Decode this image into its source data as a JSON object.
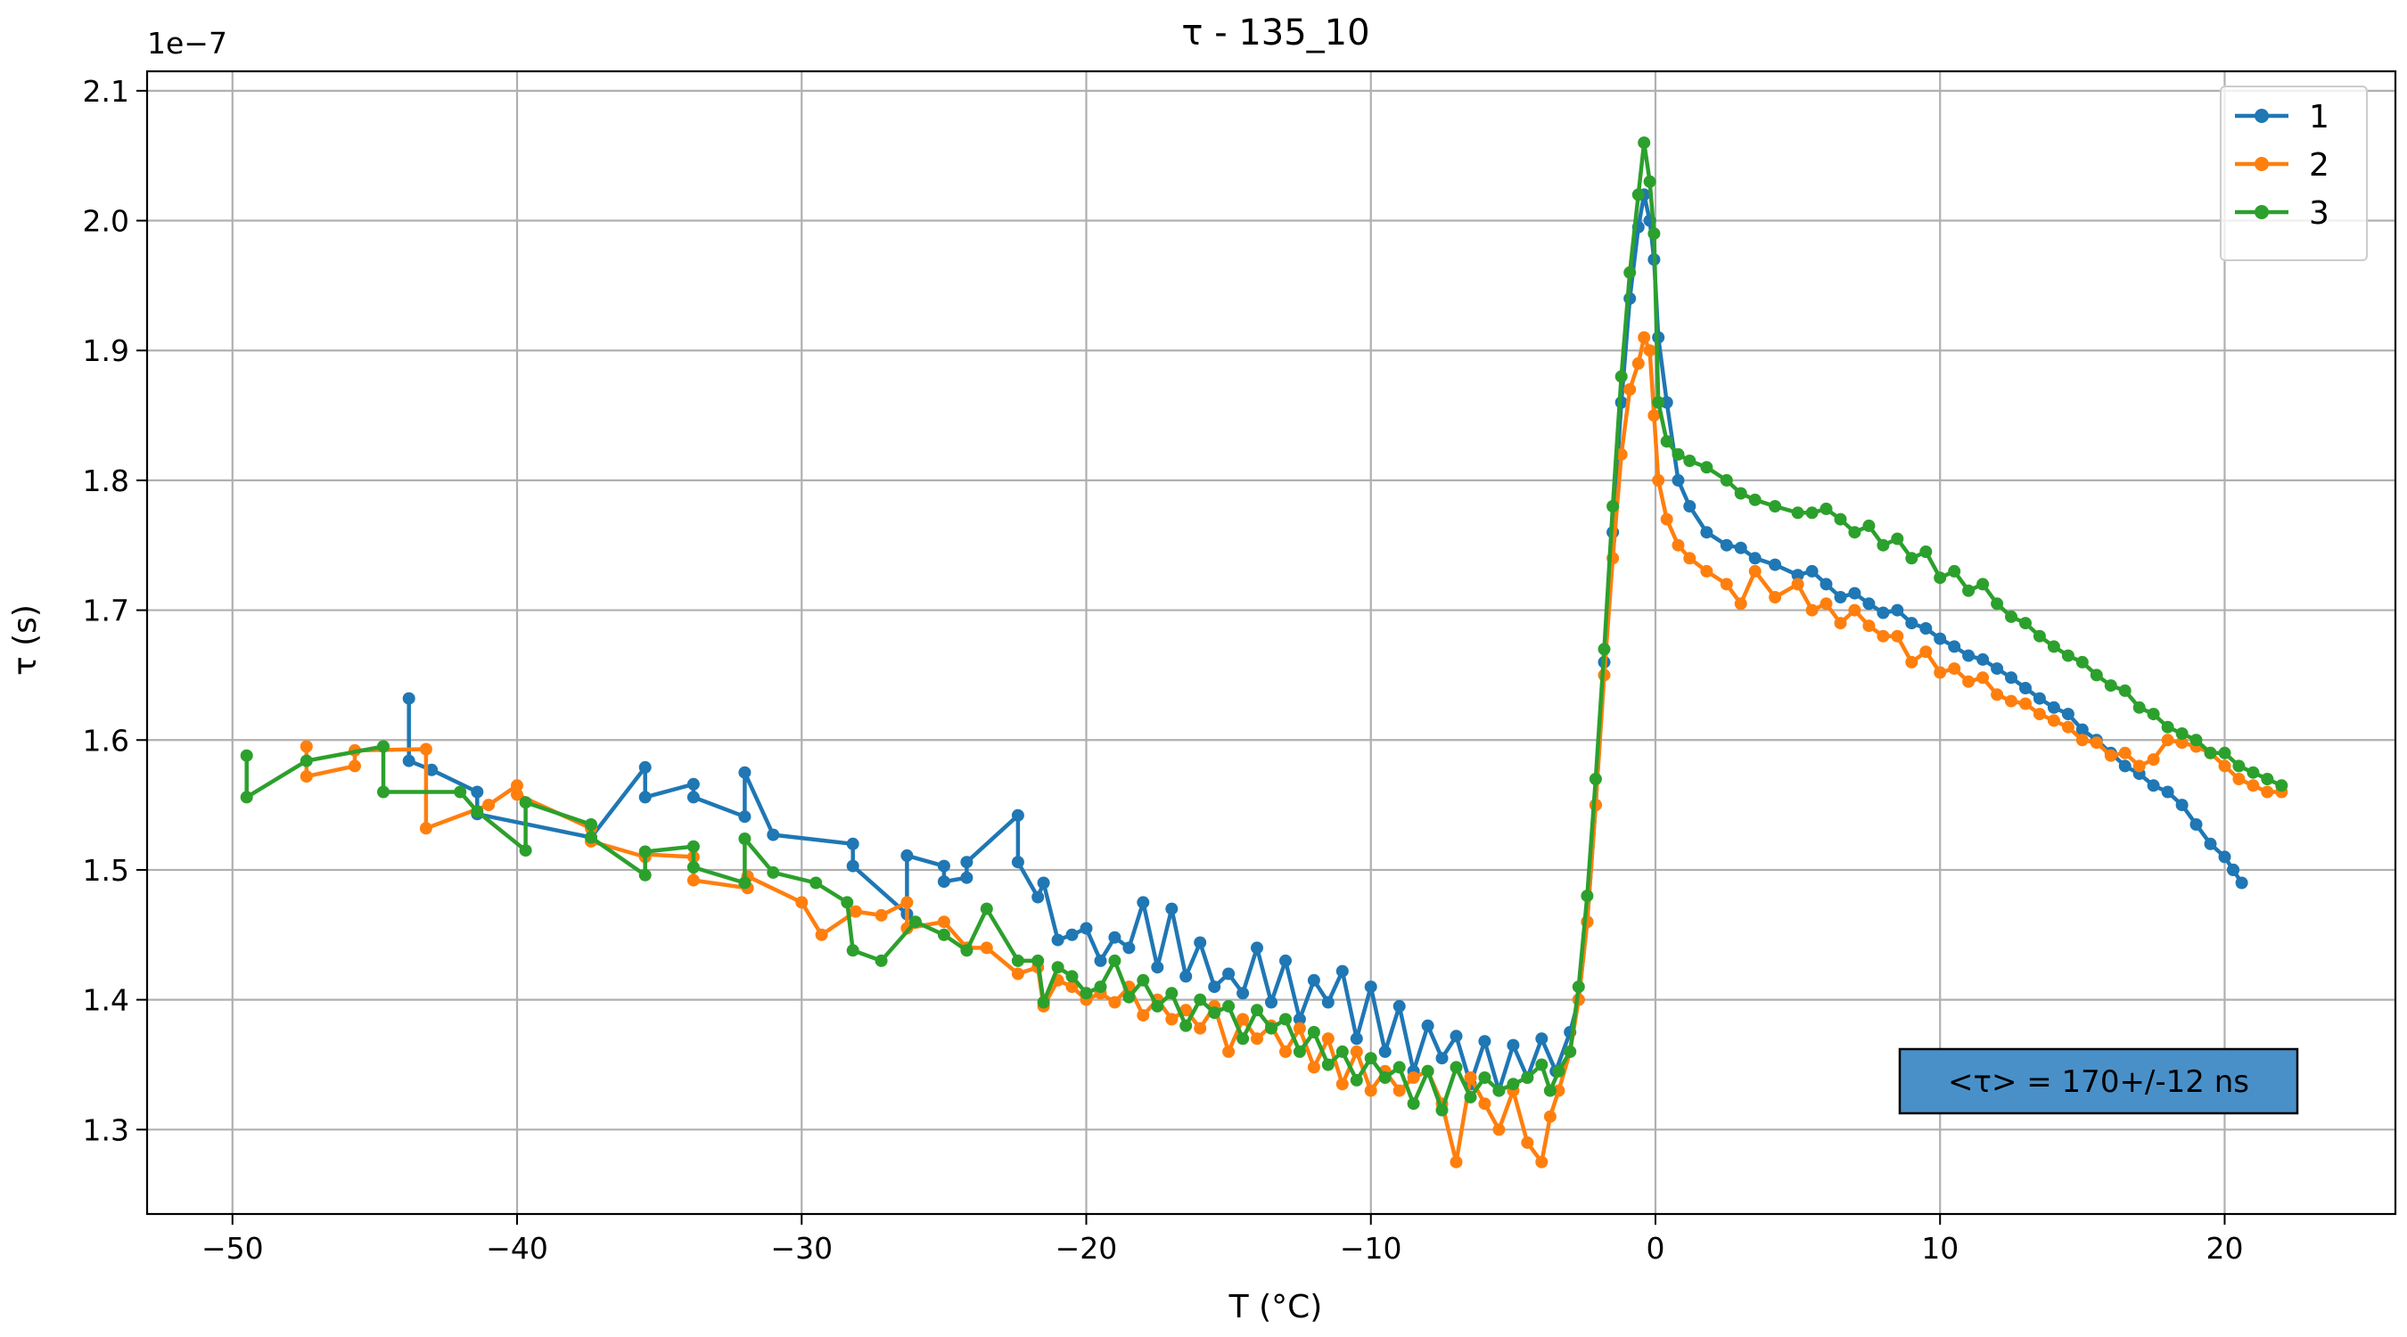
{
  "chart_data": {
    "type": "line",
    "title": "τ - 135_10",
    "xlabel": "T (°C)",
    "ylabel": "τ (s)",
    "y_offset_text": "1e−7",
    "xlim": [
      -53,
      26
    ],
    "ylim": [
      1.235,
      2.115
    ],
    "x_ticks": [
      -50,
      -40,
      -30,
      -20,
      -10,
      0,
      10,
      20
    ],
    "x_tick_labels": [
      "−50",
      "−40",
      "−30",
      "−20",
      "−10",
      "0",
      "10",
      "20"
    ],
    "y_ticks": [
      1.3,
      1.4,
      1.5,
      1.6,
      1.7,
      1.8,
      1.9,
      2.0,
      2.1
    ],
    "y_tick_labels": [
      "1.3",
      "1.4",
      "1.5",
      "1.6",
      "1.7",
      "1.8",
      "1.9",
      "2.0",
      "2.1"
    ],
    "grid": true,
    "legend_position": "top-right",
    "annotation": "<τ> = 170+/-12 ns",
    "annotation_color": "#4a90c8",
    "series": [
      {
        "name": "1",
        "color": "#1f77b4",
        "x": [
          -43.8,
          -43.8,
          -43,
          -41.4,
          -41.4,
          -37.4,
          -35.5,
          -35.5,
          -33.8,
          -33.8,
          -32,
          -32,
          -31,
          -28.2,
          -28.2,
          -26.3,
          -26.3,
          -25,
          -25,
          -24.2,
          -24.2,
          -22.4,
          -22.4,
          -21.7,
          -21.5,
          -21,
          -20.5,
          -20,
          -19.5,
          -19,
          -18.5,
          -18,
          -17.5,
          -17,
          -16.5,
          -16,
          -15.5,
          -15,
          -14.5,
          -14,
          -13.5,
          -13,
          -12.5,
          -12,
          -11.5,
          -11,
          -10.5,
          -10,
          -9.5,
          -9,
          -8.5,
          -8,
          -7.5,
          -7,
          -6.5,
          -6,
          -5.5,
          -5,
          -4.5,
          -4,
          -3.5,
          -3,
          -2.7,
          -2.4,
          -2.1,
          -1.8,
          -1.5,
          -1.2,
          -0.9,
          -0.6,
          -0.4,
          -0.2,
          -0.05,
          0.1,
          0.4,
          0.8,
          1.2,
          1.8,
          2.5,
          3,
          3.5,
          4.2,
          5,
          5.5,
          6,
          6.5,
          7,
          7.5,
          8,
          8.5,
          9,
          9.5,
          10,
          10.5,
          11,
          11.5,
          12,
          12.5,
          13,
          13.5,
          14,
          14.5,
          15,
          15.5,
          16,
          16.5,
          17,
          17.5,
          18,
          18.5,
          19,
          19.5,
          20,
          20.3,
          20.6,
          20.3
        ],
        "y": [
          1.632,
          1.584,
          1.577,
          1.56,
          1.543,
          1.525,
          1.579,
          1.556,
          1.566,
          1.556,
          1.541,
          1.575,
          1.527,
          1.52,
          1.503,
          1.466,
          1.511,
          1.503,
          1.491,
          1.494,
          1.506,
          1.542,
          1.506,
          1.479,
          1.49,
          1.446,
          1.45,
          1.455,
          1.43,
          1.448,
          1.44,
          1.475,
          1.425,
          1.47,
          1.418,
          1.444,
          1.41,
          1.42,
          1.405,
          1.44,
          1.398,
          1.43,
          1.385,
          1.415,
          1.398,
          1.422,
          1.37,
          1.41,
          1.36,
          1.395,
          1.345,
          1.38,
          1.355,
          1.372,
          1.335,
          1.368,
          1.33,
          1.365,
          1.34,
          1.37,
          1.345,
          1.375,
          1.4,
          1.46,
          1.55,
          1.66,
          1.76,
          1.86,
          1.94,
          1.995,
          2.02,
          2.0,
          1.97,
          1.91,
          1.86,
          1.8,
          1.78,
          1.76,
          1.75,
          1.748,
          1.74,
          1.735,
          1.727,
          1.73,
          1.72,
          1.71,
          1.713,
          1.705,
          1.698,
          1.7,
          1.69,
          1.686,
          1.678,
          1.672,
          1.665,
          1.662,
          1.655,
          1.648,
          1.64,
          1.632,
          1.625,
          1.62,
          1.608,
          1.6,
          1.59,
          1.58,
          1.574,
          1.565,
          1.56,
          1.55,
          1.535,
          1.52,
          1.51,
          1.5,
          1.49,
          1.5
        ]
      },
      {
        "name": "2",
        "color": "#ff7f0e",
        "x": [
          -47.4,
          -47.4,
          -45.7,
          -45.7,
          -43.2,
          -43.2,
          -41,
          -40,
          -40,
          -37.4,
          -37.4,
          -35.5,
          -35.5,
          -33.8,
          -33.8,
          -31.9,
          -31.9,
          -30,
          -29.3,
          -28.1,
          -27.2,
          -26.3,
          -26.3,
          -25,
          -24.2,
          -23.5,
          -22.4,
          -21.7,
          -21.5,
          -21,
          -20.5,
          -20,
          -19.5,
          -19,
          -18.5,
          -18,
          -17.5,
          -17,
          -16.5,
          -16,
          -15.5,
          -15,
          -14.5,
          -14,
          -13.5,
          -13,
          -12.5,
          -12,
          -11.5,
          -11,
          -10.5,
          -10,
          -9.5,
          -9,
          -8.5,
          -8,
          -7.5,
          -7,
          -6.5,
          -6,
          -5.5,
          -5,
          -4.5,
          -4,
          -3.7,
          -3.4,
          -3,
          -2.7,
          -2.4,
          -2.1,
          -1.8,
          -1.5,
          -1.2,
          -0.9,
          -0.6,
          -0.4,
          -0.2,
          -0.05,
          0.1,
          0.4,
          0.8,
          1.2,
          1.8,
          2.5,
          3,
          3.5,
          4.2,
          5,
          5.5,
          6,
          6.5,
          7,
          7.5,
          8,
          8.5,
          9,
          9.5,
          10,
          10.5,
          11,
          11.5,
          12,
          12.5,
          13,
          13.5,
          14,
          14.5,
          15,
          15.5,
          16,
          16.5,
          17,
          17.5,
          18,
          18.5,
          19,
          19.5,
          20,
          20.5,
          21,
          21.5,
          22
        ],
        "y": [
          1.595,
          1.572,
          1.58,
          1.592,
          1.593,
          1.532,
          1.55,
          1.565,
          1.558,
          1.532,
          1.522,
          1.51,
          1.512,
          1.51,
          1.492,
          1.486,
          1.495,
          1.475,
          1.45,
          1.468,
          1.465,
          1.475,
          1.455,
          1.46,
          1.44,
          1.44,
          1.42,
          1.425,
          1.395,
          1.415,
          1.41,
          1.4,
          1.405,
          1.398,
          1.41,
          1.388,
          1.4,
          1.385,
          1.392,
          1.378,
          1.395,
          1.36,
          1.385,
          1.37,
          1.38,
          1.36,
          1.378,
          1.348,
          1.37,
          1.335,
          1.36,
          1.33,
          1.345,
          1.33,
          1.34,
          1.345,
          1.32,
          1.275,
          1.34,
          1.32,
          1.3,
          1.33,
          1.29,
          1.275,
          1.31,
          1.33,
          1.36,
          1.4,
          1.46,
          1.55,
          1.65,
          1.74,
          1.82,
          1.87,
          1.89,
          1.91,
          1.9,
          1.85,
          1.8,
          1.77,
          1.75,
          1.74,
          1.73,
          1.72,
          1.705,
          1.73,
          1.71,
          1.72,
          1.7,
          1.705,
          1.69,
          1.7,
          1.688,
          1.68,
          1.68,
          1.66,
          1.668,
          1.652,
          1.655,
          1.645,
          1.648,
          1.635,
          1.63,
          1.628,
          1.62,
          1.615,
          1.61,
          1.6,
          1.598,
          1.588,
          1.59,
          1.58,
          1.585,
          1.6,
          1.598,
          1.595,
          1.59,
          1.58,
          1.57,
          1.565,
          1.56,
          1.56
        ]
      },
      {
        "name": "3",
        "color": "#2ca02c",
        "x": [
          -49.5,
          -49.5,
          -47.4,
          -44.7,
          -44.7,
          -42,
          -41.4,
          -39.7,
          -39.7,
          -37.4,
          -37.4,
          -35.5,
          -35.5,
          -33.8,
          -33.8,
          -32,
          -32,
          -31,
          -29.5,
          -28.4,
          -28.2,
          -27.2,
          -26,
          -25,
          -24.2,
          -23.5,
          -22.4,
          -21.7,
          -21.5,
          -21,
          -20.5,
          -20,
          -19.5,
          -19,
          -18.5,
          -18,
          -17.5,
          -17,
          -16.5,
          -16,
          -15.5,
          -15,
          -14.5,
          -14,
          -13.5,
          -13,
          -12.5,
          -12,
          -11.5,
          -11,
          -10.5,
          -10,
          -9.5,
          -9,
          -8.5,
          -8,
          -7.5,
          -7,
          -6.5,
          -6,
          -5.5,
          -5,
          -4.5,
          -4,
          -3.7,
          -3.4,
          -3,
          -2.7,
          -2.4,
          -2.1,
          -1.8,
          -1.5,
          -1.2,
          -0.9,
          -0.6,
          -0.4,
          -0.2,
          -0.05,
          0.1,
          0.4,
          0.8,
          1.2,
          1.8,
          2.5,
          3,
          3.5,
          4.2,
          5,
          5.5,
          6,
          6.5,
          7,
          7.5,
          8,
          8.5,
          9,
          9.5,
          10,
          10.5,
          11,
          11.5,
          12,
          12.5,
          13,
          13.5,
          14,
          14.5,
          15,
          15.5,
          16,
          16.5,
          17,
          17.5,
          18,
          18.5,
          19,
          19.5,
          20,
          20.5,
          21,
          21.5,
          22
        ],
        "y": [
          1.588,
          1.556,
          1.584,
          1.595,
          1.56,
          1.56,
          1.545,
          1.515,
          1.552,
          1.535,
          1.525,
          1.496,
          1.514,
          1.518,
          1.502,
          1.49,
          1.524,
          1.498,
          1.49,
          1.475,
          1.438,
          1.43,
          1.46,
          1.45,
          1.438,
          1.47,
          1.43,
          1.43,
          1.398,
          1.425,
          1.418,
          1.405,
          1.41,
          1.43,
          1.402,
          1.415,
          1.395,
          1.405,
          1.38,
          1.4,
          1.39,
          1.395,
          1.37,
          1.392,
          1.378,
          1.385,
          1.36,
          1.375,
          1.35,
          1.36,
          1.338,
          1.355,
          1.34,
          1.348,
          1.32,
          1.345,
          1.315,
          1.348,
          1.325,
          1.34,
          1.33,
          1.335,
          1.34,
          1.35,
          1.33,
          1.345,
          1.36,
          1.41,
          1.48,
          1.57,
          1.67,
          1.78,
          1.88,
          1.96,
          2.02,
          2.06,
          2.03,
          1.99,
          1.86,
          1.83,
          1.82,
          1.815,
          1.81,
          1.8,
          1.79,
          1.785,
          1.78,
          1.775,
          1.775,
          1.778,
          1.77,
          1.76,
          1.765,
          1.75,
          1.755,
          1.74,
          1.745,
          1.725,
          1.73,
          1.715,
          1.72,
          1.705,
          1.695,
          1.69,
          1.68,
          1.672,
          1.665,
          1.66,
          1.65,
          1.642,
          1.638,
          1.625,
          1.62,
          1.61,
          1.605,
          1.6,
          1.59,
          1.59,
          1.58,
          1.575,
          1.57,
          1.565
        ]
      }
    ]
  }
}
